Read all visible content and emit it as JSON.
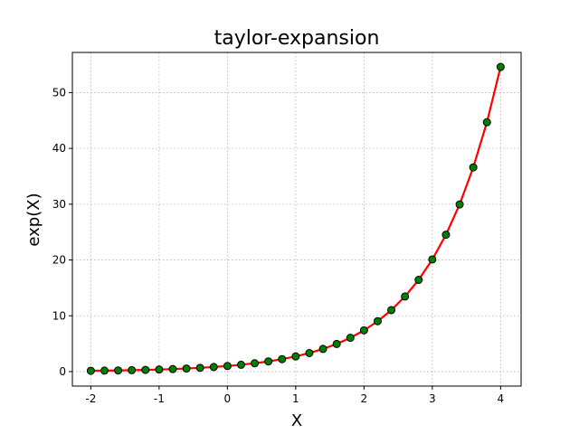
{
  "chart_data": {
    "type": "line",
    "title": "taylor-expansion",
    "xlabel": "X",
    "ylabel": "exp(X)",
    "xlim": [
      -2.27,
      4.3
    ],
    "ylim": [
      -2.6,
      57.2
    ],
    "xticks": [
      -2,
      -1,
      0,
      1,
      2,
      3,
      4
    ],
    "xtick_labels": [
      "-2",
      "-1",
      "0",
      "1",
      "2",
      "3",
      "4"
    ],
    "yticks": [
      0,
      10,
      20,
      30,
      40,
      50
    ],
    "ytick_labels": [
      "0",
      "10",
      "20",
      "30",
      "40",
      "50"
    ],
    "grid": true,
    "series": [
      {
        "line_color": "#ff0000",
        "marker_color": "#008000",
        "marker_edge_color": "#000000",
        "x": [
          -2.0,
          -1.8,
          -1.6,
          -1.4,
          -1.2,
          -1.0,
          -0.8,
          -0.6,
          -0.4,
          -0.2,
          0.0,
          0.2,
          0.4,
          0.6,
          0.8,
          1.0,
          1.2,
          1.4,
          1.6,
          1.8,
          2.0,
          2.2,
          2.4,
          2.6,
          2.8,
          3.0,
          3.2,
          3.4,
          3.6,
          3.8,
          4.0
        ],
        "y": [
          0.14,
          0.17,
          0.2,
          0.25,
          0.3,
          0.37,
          0.45,
          0.55,
          0.67,
          0.82,
          1.0,
          1.22,
          1.49,
          1.82,
          2.23,
          2.72,
          3.32,
          4.06,
          4.95,
          6.05,
          7.39,
          9.03,
          11.02,
          13.46,
          16.44,
          20.09,
          24.53,
          29.96,
          36.6,
          44.7,
          54.6
        ]
      }
    ]
  }
}
